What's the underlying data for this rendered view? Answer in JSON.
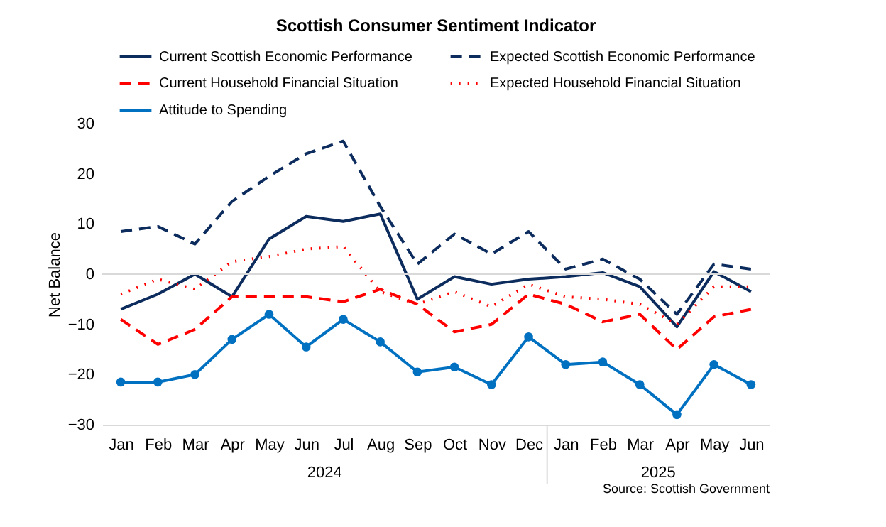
{
  "chart_data": {
    "type": "line",
    "title": "Scottish Consumer Sentiment Indicator",
    "ylabel": "Net Balance",
    "categories": [
      "Jan",
      "Feb",
      "Mar",
      "Apr",
      "May",
      "Jun",
      "Jul",
      "Aug",
      "Sep",
      "Oct",
      "Nov",
      "Dec",
      "Jan",
      "Feb",
      "Mar",
      "Apr",
      "May",
      "Jun"
    ],
    "series": [
      {
        "name": "Current Scottish Economic Performance",
        "color": "#0d2c5e",
        "line_style": "solid",
        "values": [
          -7,
          -4,
          0,
          -4.5,
          7,
          11.5,
          10.5,
          12,
          -5,
          -0.5,
          -2,
          -1,
          -0.5,
          0.3,
          -2.5,
          -10.5,
          0.5,
          -3.5
        ]
      },
      {
        "name": "Expected Scottish Economic Performance",
        "color": "#0d2c5e",
        "line_style": "dashed",
        "values": [
          8.5,
          9.5,
          6,
          14.5,
          19.5,
          24,
          26.5,
          13.5,
          2,
          8,
          4,
          8.5,
          1,
          3,
          -1,
          -8,
          2,
          1
        ]
      },
      {
        "name": "Current Household Financial Situation",
        "color": "#ff0000",
        "line_style": "dashed",
        "values": [
          -9,
          -14,
          -11,
          -4.5,
          -4.5,
          -4.5,
          -5.5,
          -3,
          -6,
          -11.5,
          -10,
          -4,
          -6,
          -9.5,
          -8,
          -15,
          -8.5,
          -7
        ]
      },
      {
        "name": "Expected Household Financial Situation",
        "color": "#ff0000",
        "line_style": "dotted",
        "values": [
          -4,
          -1,
          -3,
          2.5,
          3.5,
          5,
          5.5,
          -3.5,
          -6,
          -3.5,
          -6.5,
          -2,
          -4.5,
          -5,
          -6,
          -10,
          -2.5,
          -2.5
        ]
      },
      {
        "name": "Attitude to Spending",
        "color": "#0070c0",
        "line_style": "solid",
        "marker": "circle",
        "values": [
          -21.5,
          -21.5,
          -20,
          -13,
          -8,
          -14.5,
          -9,
          -13.5,
          -19.5,
          -18.5,
          -22,
          -12.5,
          -18,
          -17.5,
          -22,
          -28,
          -18,
          -22
        ]
      }
    ],
    "ylim": [
      -30,
      30
    ],
    "yticks": [
      -30,
      -20,
      -10,
      0,
      10,
      20,
      30
    ],
    "grid": false,
    "legend": "top",
    "ref_lines": [
      {
        "axis": "y",
        "value": 0,
        "color": "#d9d9d9"
      }
    ],
    "annotations": [
      "2024",
      "2025",
      "Source: Scottish Government"
    ]
  }
}
